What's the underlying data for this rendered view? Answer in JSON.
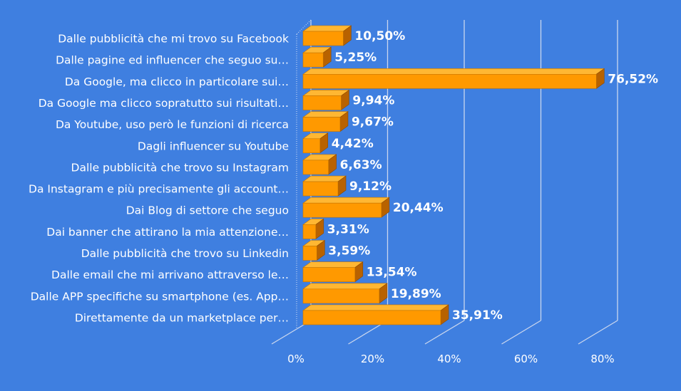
{
  "chart_data": {
    "type": "bar",
    "orientation": "horizontal",
    "categories": [
      "Dalle pubblicità che mi trovo su Facebook",
      "Dalle pagine ed influencer che seguo su…",
      "Da Google, ma clicco in particolare sui…",
      "Da Google ma clicco sopratutto sui risultati…",
      "Da Youtube, uso però le funzioni di ricerca",
      "Dagli influencer su Youtube",
      "Dalle pubblicità che trovo su Instagram",
      "Da Instagram e più precisamente gli account…",
      "Dai Blog di settore che seguo",
      "Dai banner che attirano la mia attenzione…",
      "Dalle pubblicità che trovo su Linkedin",
      "Dalle email che mi arrivano attraverso le…",
      "Dalle APP specifiche su smartphone (es. App…",
      "Direttamente da un marketplace per…"
    ],
    "values": [
      10.5,
      5.25,
      76.52,
      9.94,
      9.67,
      4.42,
      6.63,
      9.12,
      20.44,
      3.31,
      3.59,
      13.54,
      19.89,
      35.91
    ],
    "value_labels": [
      "10,50%",
      "5,25%",
      "76,52%",
      "9,94%",
      "9,67%",
      "4,42%",
      "6,63%",
      "9,12%",
      "20,44%",
      "3,31%",
      "3,59%",
      "13,54%",
      "19,89%",
      "35,91%"
    ],
    "x_ticks": [
      "0%",
      "20%",
      "40%",
      "60%",
      "80%"
    ],
    "xlim": [
      0,
      80
    ],
    "grid": true,
    "style": "3d",
    "colors": {
      "background": "#3f7fe0",
      "bar_front": "#ff9900",
      "bar_top": "#ffb733",
      "bar_side": "#b86200",
      "gridline": "#c9d6ee",
      "text": "#ffffff"
    }
  }
}
